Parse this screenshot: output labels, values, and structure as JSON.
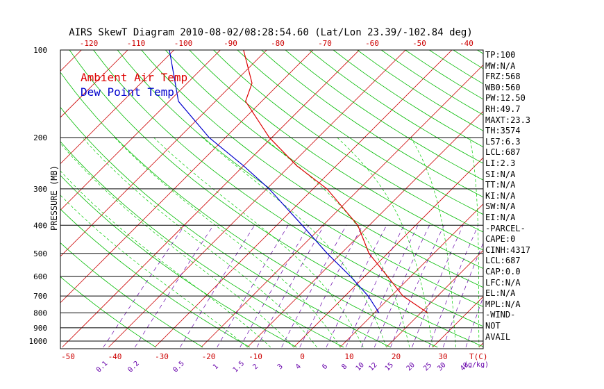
{
  "title": "AIRS SkewT Diagram 2010-08-02/08:28:54.60 (Lat/Lon 23.39/-102.84 deg)",
  "legend": {
    "ambient": {
      "label": "Ambient Air Temp",
      "color": "#dd0000"
    },
    "dewpoint": {
      "label": "Dew Point Temp",
      "color": "#0000cc"
    }
  },
  "colors": {
    "isotherm": "#cc0000",
    "dry_adiabat": "#00bb00",
    "moist_adiabat": "#00cc00",
    "mixing_ratio": "#6600aa",
    "isobar": "#000000",
    "ambient": "#dd0000",
    "dewpoint": "#0000cc",
    "bottom_temp_ticks": "#cc0000",
    "top_temp_ticks": "#cc0000",
    "mixing_ticks": "#6600aa"
  },
  "chart_data": {
    "type": "line",
    "title": "AIRS SkewT Diagram 2010-08-02/08:28:54.60 (Lat/Lon 23.39/-102.84 deg)",
    "ylabel": "PRESSURE (MB)",
    "xlabel": "T(C)",
    "y_scale": "log",
    "ylim": [
      1050,
      100
    ],
    "y_ticks": [
      "100",
      "200",
      "300",
      "400",
      "500",
      "600",
      "700",
      "800",
      "900",
      "1000"
    ],
    "x_ticks_bottom": [
      "-50",
      "-40",
      "-30",
      "-20",
      "-10",
      "0",
      "10",
      "20",
      "30"
    ],
    "x_ticks_top": [
      "-120",
      "-110",
      "-100",
      "-90",
      "-80",
      "-70",
      "-60",
      "-50",
      "-40"
    ],
    "mixing_ratio_ticks": [
      "0.1",
      "0.2",
      "0.5",
      "1",
      "1.5",
      "2",
      "3",
      "4",
      "6",
      "8",
      "10",
      "12",
      "15",
      "20",
      "25",
      "30",
      "40"
    ],
    "mixing_ratio_unit": "(g/kg)",
    "series": [
      {
        "name": "Ambient Air Temp",
        "points": [
          {
            "p": 800,
            "t": 21.5
          },
          {
            "p": 700,
            "t": 12.5
          },
          {
            "p": 600,
            "t": 5.0
          },
          {
            "p": 500,
            "t": -4.0
          },
          {
            "p": 400,
            "t": -12.5
          },
          {
            "p": 300,
            "t": -27.0
          },
          {
            "p": 250,
            "t": -38.5
          },
          {
            "p": 200,
            "t": -50.5
          },
          {
            "p": 150,
            "t": -63.5
          },
          {
            "p": 130,
            "t": -66.0
          },
          {
            "p": 100,
            "t": -75.0
          }
        ]
      },
      {
        "name": "Dew Point Temp",
        "points": [
          {
            "p": 800,
            "t": 11.0
          },
          {
            "p": 700,
            "t": 5.0
          },
          {
            "p": 600,
            "t": -3.0
          },
          {
            "p": 500,
            "t": -13.0
          },
          {
            "p": 400,
            "t": -24.5
          },
          {
            "p": 300,
            "t": -39.5
          },
          {
            "p": 250,
            "t": -50.0
          },
          {
            "p": 200,
            "t": -63.5
          },
          {
            "p": 150,
            "t": -78.0
          },
          {
            "p": 100,
            "t": -91.0
          }
        ]
      }
    ]
  },
  "indices": [
    "TP:100",
    "MW:N/A",
    "FRZ:568",
    "WB0:560",
    "PW:12.50",
    "RH:49.7",
    "MAXT:23.3",
    "TH:3574",
    "L57:6.3",
    "LCL:687",
    "LI:2.3",
    "SI:N/A",
    "TT:N/A",
    "KI:N/A",
    "SW:N/A",
    "EI:N/A",
    "-PARCEL-",
    "CAPE:0",
    "CINH:4317",
    "LCL:687",
    "CAP:0.0",
    "LFC:N/A",
    "EL:N/A",
    "MPL:N/A",
    "-WIND-",
    "NOT",
    "AVAIL"
  ]
}
